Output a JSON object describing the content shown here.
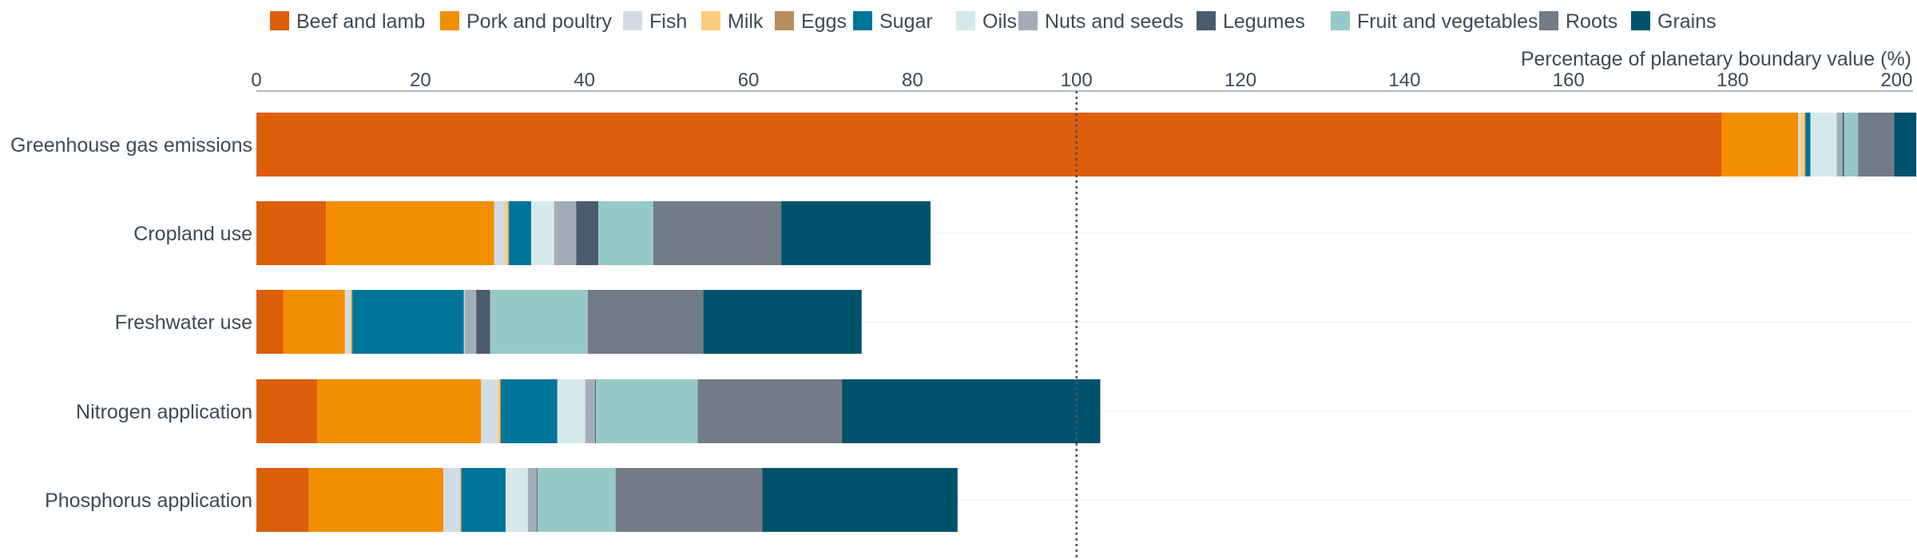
{
  "chart_data": {
    "type": "bar",
    "orientation": "horizontal",
    "stacked": true,
    "title": "",
    "xlabel": "Percentage of planetary boundary value (%)",
    "ylabel": "",
    "xlim": [
      0,
      202
    ],
    "xticks": [
      0,
      20,
      40,
      60,
      80,
      100,
      120,
      140,
      160,
      180,
      200
    ],
    "reference_line": 100,
    "grid": true,
    "legend_position": "top",
    "categories": [
      "Greenhouse gas emissions",
      "Cropland use",
      "Freshwater use",
      "Nitrogen application",
      "Phosphorus application"
    ],
    "series": [
      {
        "name": "Beef and lamb",
        "color": "#dd5e0b",
        "values": [
          178.7,
          8.5,
          3.3,
          7.4,
          6.4
        ]
      },
      {
        "name": "Pork and poultry",
        "color": "#f28f00",
        "values": [
          9.3,
          20.5,
          7.5,
          20.0,
          16.4
        ]
      },
      {
        "name": "Fish",
        "color": "#d2dce6",
        "values": [
          0.3,
          1.3,
          0.6,
          2.0,
          2.0
        ]
      },
      {
        "name": "Milk",
        "color": "#fccc7c",
        "values": [
          0.5,
          0.4,
          0.2,
          0.3,
          0.1
        ]
      },
      {
        "name": "Eggs",
        "color": "#b88d5e",
        "values": [
          0.1,
          0.1,
          0.1,
          0.1,
          0.1
        ]
      },
      {
        "name": "Sugar",
        "color": "#00759a",
        "values": [
          0.6,
          2.7,
          13.6,
          6.9,
          5.4
        ]
      },
      {
        "name": "Oils",
        "color": "#d6e9ea",
        "values": [
          3.2,
          2.8,
          0.1,
          3.4,
          2.7
        ]
      },
      {
        "name": "Nuts and seeds",
        "color": "#a3adb8",
        "values": [
          0.7,
          2.7,
          1.4,
          1.2,
          1.1
        ]
      },
      {
        "name": "Legumes",
        "color": "#4b5b6e",
        "values": [
          0.2,
          2.7,
          1.7,
          0.1,
          0.1
        ]
      },
      {
        "name": "Fruit and vegetables",
        "color": "#95cac8",
        "values": [
          1.7,
          6.7,
          11.9,
          12.4,
          9.5
        ]
      },
      {
        "name": "Roots",
        "color": "#737b86",
        "values": [
          4.4,
          15.6,
          14.1,
          17.6,
          17.9
        ]
      },
      {
        "name": "Grains",
        "color": "#00526c",
        "values": [
          2.7,
          18.2,
          19.3,
          31.5,
          23.8
        ]
      }
    ]
  }
}
